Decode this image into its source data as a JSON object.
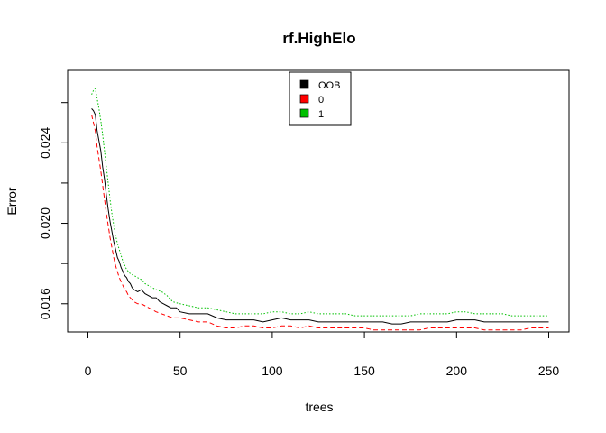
{
  "chart_data": {
    "type": "line",
    "title": "rf.HighElo",
    "xlabel": "trees",
    "ylabel": "Error",
    "xlim": [
      -11,
      261
    ],
    "ylim": [
      0.0146,
      0.0276
    ],
    "x_ticks": [
      0,
      50,
      100,
      150,
      200,
      250
    ],
    "x_tick_labels": [
      "0",
      "50",
      "100",
      "150",
      "200",
      "250"
    ],
    "y_ticks": [
      0.016,
      0.018,
      0.02,
      0.022,
      0.024,
      0.026
    ],
    "y_tick_labels": [
      {
        "value": 0.016,
        "label": "0.016"
      },
      {
        "value": 0.02,
        "label": "0.020"
      },
      {
        "value": 0.024,
        "label": "0.024"
      }
    ],
    "grid": false,
    "legend_position": "top-center",
    "series": [
      {
        "name": "OOB",
        "color": "#000000",
        "dash": "solid",
        "points": [
          [
            2,
            0.0257
          ],
          [
            3,
            0.0256
          ],
          [
            4,
            0.0254
          ],
          [
            5,
            0.0246
          ],
          [
            6,
            0.0241
          ],
          [
            7,
            0.0236
          ],
          [
            8,
            0.0228
          ],
          [
            9,
            0.0222
          ],
          [
            10,
            0.0214
          ],
          [
            11,
            0.0207
          ],
          [
            12,
            0.0201
          ],
          [
            13,
            0.0196
          ],
          [
            14,
            0.0191
          ],
          [
            15,
            0.0187
          ],
          [
            16,
            0.0183
          ],
          [
            17,
            0.0181
          ],
          [
            18,
            0.0178
          ],
          [
            19,
            0.0176
          ],
          [
            20,
            0.0174
          ],
          [
            21,
            0.0173
          ],
          [
            22,
            0.0171
          ],
          [
            23,
            0.017
          ],
          [
            24,
            0.0168
          ],
          [
            25,
            0.0167
          ],
          [
            27,
            0.0166
          ],
          [
            29,
            0.0167
          ],
          [
            31,
            0.0165
          ],
          [
            33,
            0.0164
          ],
          [
            35,
            0.0163
          ],
          [
            37,
            0.0163
          ],
          [
            39,
            0.0161
          ],
          [
            41,
            0.016
          ],
          [
            43,
            0.0159
          ],
          [
            45,
            0.0158
          ],
          [
            48,
            0.0158
          ],
          [
            50,
            0.0156
          ],
          [
            55,
            0.0155
          ],
          [
            60,
            0.0155
          ],
          [
            65,
            0.0155
          ],
          [
            70,
            0.0153
          ],
          [
            75,
            0.0152
          ],
          [
            80,
            0.0152
          ],
          [
            85,
            0.0152
          ],
          [
            90,
            0.0152
          ],
          [
            95,
            0.0151
          ],
          [
            100,
            0.0152
          ],
          [
            105,
            0.0153
          ],
          [
            110,
            0.0152
          ],
          [
            115,
            0.0152
          ],
          [
            120,
            0.0152
          ],
          [
            125,
            0.0151
          ],
          [
            130,
            0.0151
          ],
          [
            135,
            0.0151
          ],
          [
            140,
            0.0151
          ],
          [
            145,
            0.0151
          ],
          [
            150,
            0.0151
          ],
          [
            155,
            0.0151
          ],
          [
            160,
            0.0151
          ],
          [
            165,
            0.015
          ],
          [
            170,
            0.015
          ],
          [
            175,
            0.0151
          ],
          [
            180,
            0.0151
          ],
          [
            185,
            0.0151
          ],
          [
            190,
            0.0151
          ],
          [
            195,
            0.0151
          ],
          [
            200,
            0.0152
          ],
          [
            205,
            0.0152
          ],
          [
            210,
            0.0152
          ],
          [
            215,
            0.0151
          ],
          [
            220,
            0.0151
          ],
          [
            225,
            0.0151
          ],
          [
            230,
            0.0151
          ],
          [
            235,
            0.0151
          ],
          [
            240,
            0.0151
          ],
          [
            245,
            0.0151
          ],
          [
            250,
            0.0151
          ]
        ]
      },
      {
        "name": "0",
        "color": "#ff0000",
        "dash": "dashed",
        "points": [
          [
            2,
            0.0254
          ],
          [
            3,
            0.025
          ],
          [
            4,
            0.0246
          ],
          [
            5,
            0.0238
          ],
          [
            6,
            0.0232
          ],
          [
            7,
            0.0226
          ],
          [
            8,
            0.0219
          ],
          [
            9,
            0.0212
          ],
          [
            10,
            0.0205
          ],
          [
            11,
            0.0199
          ],
          [
            12,
            0.0193
          ],
          [
            13,
            0.0188
          ],
          [
            14,
            0.0183
          ],
          [
            15,
            0.0179
          ],
          [
            16,
            0.0176
          ],
          [
            17,
            0.0173
          ],
          [
            18,
            0.0171
          ],
          [
            19,
            0.0169
          ],
          [
            20,
            0.0167
          ],
          [
            21,
            0.0166
          ],
          [
            22,
            0.0164
          ],
          [
            23,
            0.0163
          ],
          [
            25,
            0.0161
          ],
          [
            27,
            0.016
          ],
          [
            29,
            0.016
          ],
          [
            31,
            0.0159
          ],
          [
            33,
            0.0158
          ],
          [
            35,
            0.0157
          ],
          [
            37,
            0.0156
          ],
          [
            40,
            0.0155
          ],
          [
            43,
            0.0154
          ],
          [
            46,
            0.0153
          ],
          [
            50,
            0.0153
          ],
          [
            55,
            0.0152
          ],
          [
            60,
            0.0151
          ],
          [
            65,
            0.0151
          ],
          [
            70,
            0.0149
          ],
          [
            75,
            0.0148
          ],
          [
            80,
            0.0148
          ],
          [
            85,
            0.0149
          ],
          [
            90,
            0.0149
          ],
          [
            95,
            0.0148
          ],
          [
            100,
            0.0148
          ],
          [
            105,
            0.0149
          ],
          [
            110,
            0.0149
          ],
          [
            115,
            0.0148
          ],
          [
            120,
            0.0149
          ],
          [
            125,
            0.0148
          ],
          [
            130,
            0.0148
          ],
          [
            135,
            0.0148
          ],
          [
            140,
            0.0148
          ],
          [
            145,
            0.0148
          ],
          [
            150,
            0.0148
          ],
          [
            155,
            0.0147
          ],
          [
            160,
            0.0147
          ],
          [
            165,
            0.0147
          ],
          [
            170,
            0.0147
          ],
          [
            175,
            0.0147
          ],
          [
            180,
            0.0147
          ],
          [
            185,
            0.0148
          ],
          [
            190,
            0.0148
          ],
          [
            195,
            0.0148
          ],
          [
            200,
            0.0148
          ],
          [
            205,
            0.0148
          ],
          [
            210,
            0.0148
          ],
          [
            215,
            0.0147
          ],
          [
            220,
            0.0147
          ],
          [
            225,
            0.0147
          ],
          [
            230,
            0.0147
          ],
          [
            235,
            0.0147
          ],
          [
            240,
            0.0148
          ],
          [
            245,
            0.0148
          ],
          [
            250,
            0.0148
          ]
        ]
      },
      {
        "name": "1",
        "color": "#00c000",
        "dash": "dotted",
        "points": [
          [
            2,
            0.0264
          ],
          [
            3,
            0.0266
          ],
          [
            4,
            0.0267
          ],
          [
            5,
            0.0262
          ],
          [
            6,
            0.0257
          ],
          [
            7,
            0.0251
          ],
          [
            8,
            0.0244
          ],
          [
            9,
            0.0236
          ],
          [
            10,
            0.0228
          ],
          [
            11,
            0.022
          ],
          [
            12,
            0.0212
          ],
          [
            13,
            0.0205
          ],
          [
            14,
            0.0199
          ],
          [
            15,
            0.0194
          ],
          [
            16,
            0.019
          ],
          [
            17,
            0.0187
          ],
          [
            18,
            0.0184
          ],
          [
            19,
            0.0181
          ],
          [
            20,
            0.0179
          ],
          [
            21,
            0.0177
          ],
          [
            22,
            0.0176
          ],
          [
            23,
            0.0175
          ],
          [
            25,
            0.0174
          ],
          [
            27,
            0.0173
          ],
          [
            29,
            0.0172
          ],
          [
            31,
            0.017
          ],
          [
            33,
            0.0169
          ],
          [
            35,
            0.0168
          ],
          [
            37,
            0.0167
          ],
          [
            40,
            0.0166
          ],
          [
            43,
            0.0164
          ],
          [
            46,
            0.0161
          ],
          [
            50,
            0.016
          ],
          [
            55,
            0.0159
          ],
          [
            60,
            0.0158
          ],
          [
            65,
            0.0158
          ],
          [
            70,
            0.0157
          ],
          [
            75,
            0.0156
          ],
          [
            80,
            0.0155
          ],
          [
            85,
            0.0155
          ],
          [
            90,
            0.0155
          ],
          [
            95,
            0.0155
          ],
          [
            100,
            0.0156
          ],
          [
            105,
            0.0156
          ],
          [
            110,
            0.0155
          ],
          [
            115,
            0.0155
          ],
          [
            120,
            0.0156
          ],
          [
            125,
            0.0155
          ],
          [
            130,
            0.0155
          ],
          [
            135,
            0.0155
          ],
          [
            140,
            0.0155
          ],
          [
            145,
            0.0154
          ],
          [
            150,
            0.0154
          ],
          [
            155,
            0.0154
          ],
          [
            160,
            0.0154
          ],
          [
            165,
            0.0154
          ],
          [
            170,
            0.0154
          ],
          [
            175,
            0.0154
          ],
          [
            180,
            0.0155
          ],
          [
            185,
            0.0155
          ],
          [
            190,
            0.0155
          ],
          [
            195,
            0.0155
          ],
          [
            200,
            0.0156
          ],
          [
            205,
            0.0156
          ],
          [
            210,
            0.0155
          ],
          [
            215,
            0.0155
          ],
          [
            220,
            0.0155
          ],
          [
            225,
            0.0155
          ],
          [
            230,
            0.0154
          ],
          [
            235,
            0.0154
          ],
          [
            240,
            0.0154
          ],
          [
            245,
            0.0154
          ],
          [
            250,
            0.0154
          ]
        ]
      }
    ]
  }
}
